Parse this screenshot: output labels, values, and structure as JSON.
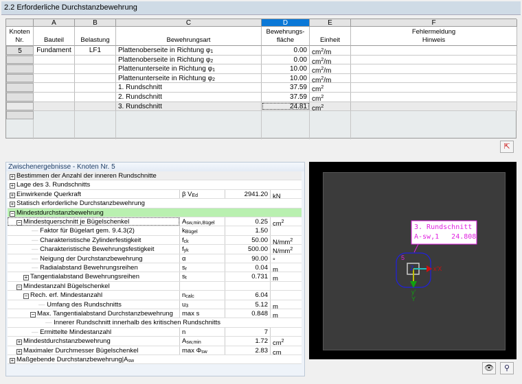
{
  "title": "2.2 Erforderliche Durchstanzbewehrung",
  "table": {
    "columns": [
      {
        "letter": "",
        "header": "Knoten\nNr."
      },
      {
        "letter": "A",
        "header": "Bauteil"
      },
      {
        "letter": "B",
        "header": "Belastung"
      },
      {
        "letter": "C",
        "header": "Bewehrungsart"
      },
      {
        "letter": "D",
        "header": "Bewehrungs-\nfläche"
      },
      {
        "letter": "E",
        "header": "Einheit"
      },
      {
        "letter": "F",
        "header": "Fehlermeldung\nHinweis"
      }
    ],
    "rows": [
      {
        "knoten": "5",
        "bauteil": "Fundament",
        "belastung": "LF1",
        "art": "Plattenoberseite in Richtung φ",
        "art_sub": "1",
        "flaeche": "0.00",
        "einheit": "cm",
        "einheit_sup": "2",
        "einheit_suffix": "/m"
      },
      {
        "knoten": "",
        "bauteil": "",
        "belastung": "",
        "art": "Plattenoberseite in Richtung φ",
        "art_sub": "2",
        "flaeche": "0.00",
        "einheit": "cm",
        "einheit_sup": "2",
        "einheit_suffix": "/m"
      },
      {
        "knoten": "",
        "bauteil": "",
        "belastung": "",
        "art": "Plattenunterseite in Richtung φ",
        "art_sub": "1",
        "flaeche": "10.00",
        "einheit": "cm",
        "einheit_sup": "2",
        "einheit_suffix": "/m"
      },
      {
        "knoten": "",
        "bauteil": "",
        "belastung": "",
        "art": "Plattenunterseite in Richtung φ",
        "art_sub": "2",
        "flaeche": "10.00",
        "einheit": "cm",
        "einheit_sup": "2",
        "einheit_suffix": "/m"
      },
      {
        "knoten": "",
        "bauteil": "",
        "belastung": "",
        "art": "1. Rundschnitt",
        "art_sub": "",
        "flaeche": "37.59",
        "einheit": "cm",
        "einheit_sup": "2",
        "einheit_suffix": ""
      },
      {
        "knoten": "",
        "bauteil": "",
        "belastung": "",
        "art": "2. Rundschnitt",
        "art_sub": "",
        "flaeche": "37.59",
        "einheit": "cm",
        "einheit_sup": "2",
        "einheit_suffix": ""
      },
      {
        "knoten": "",
        "bauteil": "",
        "belastung": "",
        "art": "3. Rundschnitt",
        "art_sub": "",
        "flaeche": "24.81",
        "einheit": "cm",
        "einheit_sup": "2",
        "einheit_suffix": ""
      }
    ],
    "selected_column": "D",
    "selected_row": 7
  },
  "details": {
    "title": "Zwischenergebnisse - Knoten Nr.  5",
    "rows": [
      {
        "level": 0,
        "exp": "+",
        "label": "Bestimmen der Anzahl der inneren Rundschnitte",
        "sym": "",
        "sym_sub": "",
        "value": "",
        "unit": "",
        "unit_sup": ""
      },
      {
        "level": 0,
        "exp": "+",
        "label": "Lage des 3. Rundschnitts",
        "sym": "",
        "sym_sub": "",
        "value": "",
        "unit": "",
        "unit_sup": ""
      },
      {
        "level": 0,
        "exp": "+",
        "label": "Einwirkende Querkraft",
        "sym": "β V",
        "sym_sub": "Ed",
        "value": "2941.20",
        "unit": "kN",
        "unit_sup": ""
      },
      {
        "level": 0,
        "exp": "+",
        "label": "Statisch erforderliche Durchstanzbewehrung",
        "sym": "",
        "sym_sub": "",
        "value": "",
        "unit": "",
        "unit_sup": ""
      },
      {
        "level": 0,
        "exp": "-",
        "label": "Mindestdurchstanzbewehrung",
        "sym": "",
        "sym_sub": "",
        "value": "",
        "unit": "",
        "unit_sup": ""
      },
      {
        "level": 1,
        "exp": "-",
        "label": "Mindestquerschnitt je Bügelschenkel",
        "sym": "A",
        "sym_sub": "sw,min,Bügel",
        "value": "0.25",
        "unit": "cm",
        "unit_sup": "2"
      },
      {
        "level": 2,
        "exp": "",
        "label": "Faktor für Bügelart gem. 9.4.3(2)",
        "sym": "k",
        "sym_sub": "Bügel",
        "value": "1.50",
        "unit": "",
        "unit_sup": ""
      },
      {
        "level": 2,
        "exp": "",
        "label": "Charakteristische Zylinderfestigkeit",
        "sym": "f",
        "sym_sub": "ck",
        "value": "50.00",
        "unit": "N/mm",
        "unit_sup": "2"
      },
      {
        "level": 2,
        "exp": "",
        "label": "Charakteristische Bewehrungsfestigkeit",
        "sym": "f",
        "sym_sub": "yk",
        "value": "500.00",
        "unit": "N/mm",
        "unit_sup": "2"
      },
      {
        "level": 2,
        "exp": "",
        "label": "Neigung der Durchstanzbewehrung",
        "sym": "α",
        "sym_sub": "",
        "value": "90.00",
        "unit": "°",
        "unit_sup": ""
      },
      {
        "level": 2,
        "exp": "",
        "label": "Radialabstand Bewehrungsreihen",
        "sym": "s",
        "sym_sub": "r",
        "value": "0.04",
        "unit": "m",
        "unit_sup": ""
      },
      {
        "level": 2,
        "exp": "+",
        "label": "Tangentialabstand Bewehrungsreihen",
        "sym": "s",
        "sym_sub": "t",
        "value": "0.731",
        "unit": "m",
        "unit_sup": ""
      },
      {
        "level": 1,
        "exp": "-",
        "label": "Mindestanzahl Bügelschenkel",
        "sym": "",
        "sym_sub": "",
        "value": "",
        "unit": "",
        "unit_sup": ""
      },
      {
        "level": 2,
        "exp": "-",
        "label": "Rech. erf. Mindestanzahl",
        "sym": "n",
        "sym_sub": "calc",
        "value": "6.04",
        "unit": "",
        "unit_sup": ""
      },
      {
        "level": 3,
        "exp": "",
        "label": "Umfang des Rundschnitts",
        "sym": "u",
        "sym_sub": "3",
        "value": "5.12",
        "unit": "m",
        "unit_sup": ""
      },
      {
        "level": 3,
        "exp": "-",
        "label": "Max. Tangentialabstand Durchstanzbewehrung",
        "sym": "max s",
        "sym_sub": "",
        "value": "0.848",
        "unit": "m",
        "unit_sup": ""
      },
      {
        "level": 4,
        "exp": "",
        "label": "Innerer Rundschnitt innerhalb des kritischen Rundschnitts",
        "sym": "",
        "sym_sub": "",
        "value": "",
        "unit": "",
        "unit_sup": "",
        "span": true
      },
      {
        "level": 2,
        "exp": "",
        "label": "Ermittelte Mindestanzahl",
        "sym": "n",
        "sym_sub": "",
        "value": "7",
        "unit": "",
        "unit_sup": ""
      },
      {
        "level": 1,
        "exp": "+",
        "label": "Mindestdurchstanzbewehrung",
        "sym": "A",
        "sym_sub": "sw,min",
        "value": "1.72",
        "unit": "cm",
        "unit_sup": "2"
      },
      {
        "level": 1,
        "exp": "+",
        "label": "Maximaler Durchmesser Bügelschenkel",
        "sym": "max Φ",
        "sym_sub": "sw",
        "value": "2.83",
        "unit": "cm",
        "unit_sup": ""
      },
      {
        "level": 0,
        "exp": "+",
        "label": "Maßgebende Durchstanzbewehrung|A",
        "label_sub": "sw",
        "sym": "",
        "sym_sub": "",
        "value": "",
        "unit": "",
        "unit_sup": ""
      }
    ]
  },
  "graphic": {
    "label_line1": "3. Rundschnitt",
    "label_line2": "A-sw,1   24.808",
    "node": "5",
    "axis_z": "Z",
    "axis_x": "x'X",
    "axis_y": "y'\nY",
    "colors": {
      "label": "#e020e0",
      "perimeter": "#2020e0",
      "x": "#cc1010",
      "y": "#10a010",
      "xl": "#20c0c0",
      "yl": "#c0c000"
    }
  },
  "icons": {
    "pick": "pick-icon",
    "eye": "eye-icon",
    "view": "view-options-icon"
  }
}
